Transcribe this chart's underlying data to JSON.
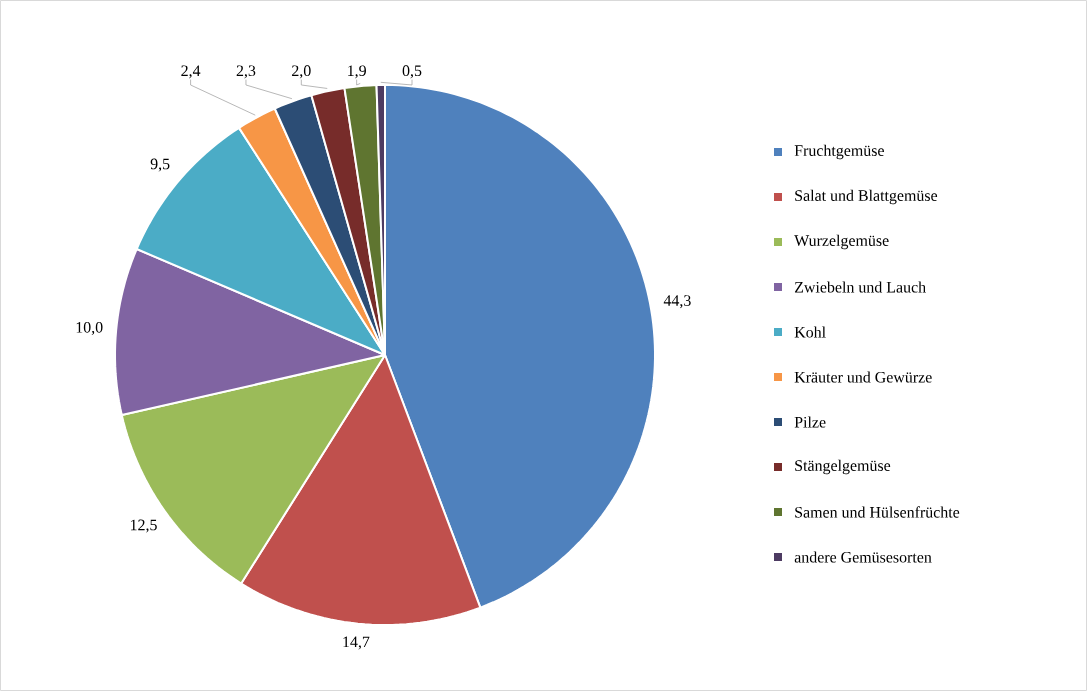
{
  "chart_data": {
    "type": "pie",
    "categories": [
      "Fruchtgemüse",
      "Salat und Blattgemüse",
      "Wurzelgemüse",
      "Zwiebeln und Lauch",
      "Kohl",
      "Kräuter und Gewürze",
      "Pilze",
      "Stängelgemüse",
      "Samen und Hülsenfrüchte",
      "andere Gemüsesorten"
    ],
    "values": [
      44.3,
      14.7,
      12.5,
      10.0,
      9.5,
      2.4,
      2.3,
      2.0,
      1.9,
      0.5
    ],
    "value_labels": [
      "44,3",
      "14,7",
      "12,5",
      "10,0",
      "9,5",
      "2,4",
      "2,3",
      "2,0",
      "1,9",
      "0,5"
    ],
    "colors": [
      "#4f81bd",
      "#c0504d",
      "#9bbb59",
      "#8064a2",
      "#4bacc6",
      "#f79646",
      "#2c4d75",
      "#772c2a",
      "#5f7530",
      "#4d3b62"
    ],
    "legend": "right"
  }
}
